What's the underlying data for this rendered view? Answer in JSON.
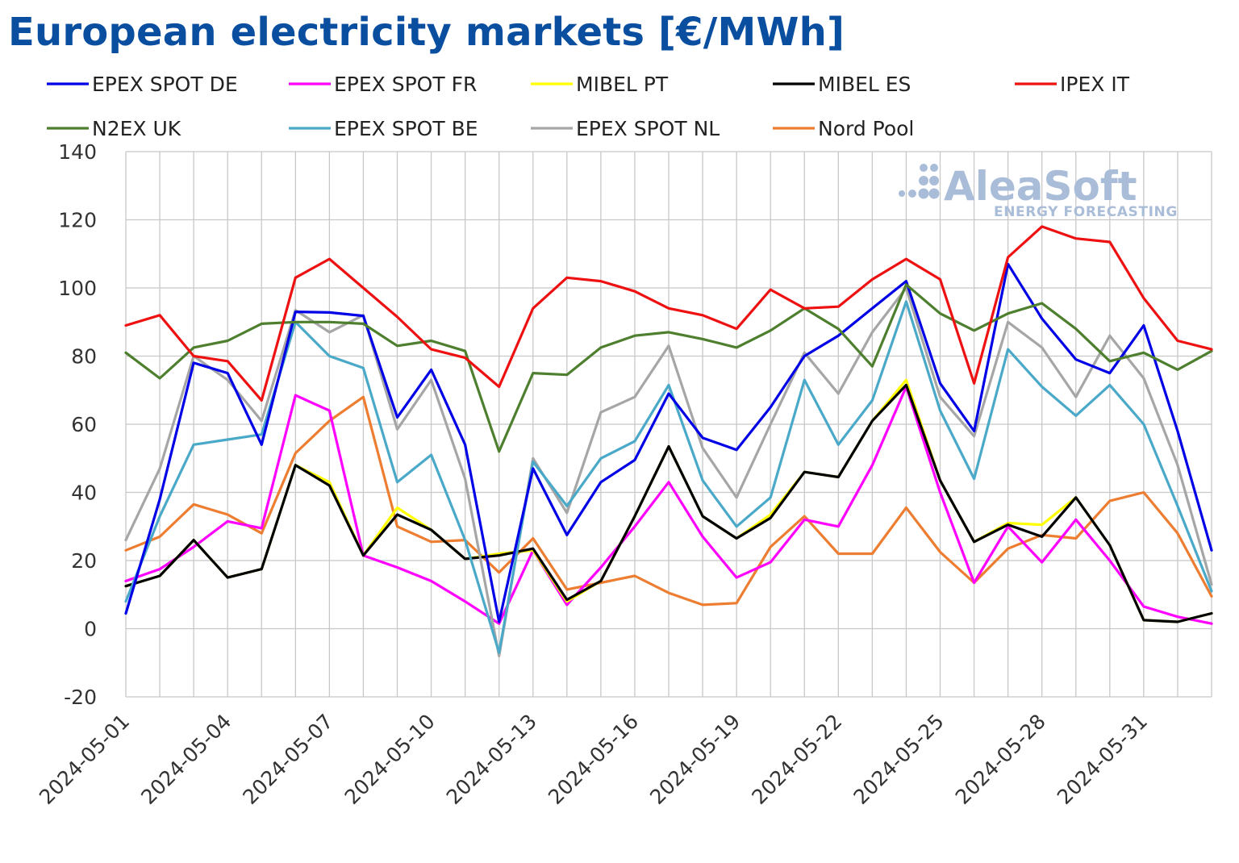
{
  "chart_data": {
    "type": "line",
    "title": "European electricity markets [€/MWh]",
    "xlabel": "",
    "ylabel": "",
    "ylim": [
      -20,
      140
    ],
    "yticks": [
      -20,
      0,
      20,
      40,
      60,
      80,
      100,
      120,
      140
    ],
    "grid": true,
    "legend_position": "top",
    "x": [
      "2024-05-01",
      "2024-05-02",
      "2024-05-03",
      "2024-05-04",
      "2024-05-05",
      "2024-05-06",
      "2024-05-07",
      "2024-05-08",
      "2024-05-09",
      "2024-05-10",
      "2024-05-11",
      "2024-05-12",
      "2024-05-13",
      "2024-05-14",
      "2024-05-15",
      "2024-05-16",
      "2024-05-17",
      "2024-05-18",
      "2024-05-19",
      "2024-05-20",
      "2024-05-21",
      "2024-05-22",
      "2024-05-23",
      "2024-05-24",
      "2024-05-25",
      "2024-05-26",
      "2024-05-27",
      "2024-05-28",
      "2024-05-29",
      "2024-05-30",
      "2024-05-31",
      "2024-06-01",
      "2024-06-02"
    ],
    "x_tick_labels": [
      "2024-05-01",
      "2024-05-04",
      "2024-05-07",
      "2024-05-10",
      "2024-05-13",
      "2024-05-16",
      "2024-05-19",
      "2024-05-22",
      "2024-05-25",
      "2024-05-28",
      "2024-05-31"
    ],
    "series": [
      {
        "name": "EPEX SPOT DE",
        "color": "#0000e6",
        "values": [
          4.5,
          38,
          78,
          75,
          54,
          93,
          92.8,
          91.8,
          62,
          76,
          54,
          2,
          47,
          27.5,
          43,
          49.5,
          69,
          56,
          52.5,
          65,
          80,
          86,
          94,
          102,
          72,
          58,
          107,
          91,
          79,
          75,
          89,
          58,
          23
        ]
      },
      {
        "name": "EPEX SPOT FR",
        "color": "#ff00ff",
        "values": [
          14,
          17.5,
          24,
          31.5,
          29.5,
          68.5,
          64,
          21.5,
          18,
          14,
          8,
          1.5,
          23,
          7,
          18,
          30,
          43,
          27,
          15,
          19.5,
          32,
          30,
          48,
          71,
          40,
          13.5,
          30,
          19.5,
          32,
          20,
          6.5,
          3.5,
          1.5
        ]
      },
      {
        "name": "MIBEL PT",
        "color": "#ffff00",
        "values": [
          12.5,
          15.5,
          26,
          15,
          17.5,
          48,
          43,
          21.5,
          35.5,
          29,
          20.5,
          22,
          23,
          8,
          14,
          33,
          53.5,
          33,
          26.5,
          33.5,
          46,
          44.5,
          61,
          73,
          43.5,
          25.5,
          31,
          30.5,
          38.5,
          24.5,
          2.5,
          2,
          4.5
        ]
      },
      {
        "name": "MIBEL ES",
        "color": "#000000",
        "values": [
          12.5,
          15.5,
          26,
          15,
          17.5,
          48,
          42,
          21.5,
          33.5,
          29,
          20.5,
          21.5,
          23.5,
          8.5,
          14,
          33,
          53.5,
          33,
          26.5,
          32.5,
          46,
          44.5,
          61,
          71.5,
          43.5,
          25.5,
          30.5,
          27,
          38.5,
          24.5,
          2.5,
          2,
          4.5
        ]
      },
      {
        "name": "IPEX IT",
        "color": "#ee1111",
        "values": [
          89,
          92,
          80,
          78.5,
          67,
          103,
          108.5,
          100,
          91.5,
          82,
          79.5,
          71,
          94,
          103,
          102,
          99,
          94,
          92,
          88,
          99.5,
          94,
          94.5,
          102.5,
          108.5,
          102.5,
          72,
          109,
          118,
          114.5,
          113.5,
          97,
          84.5,
          82
        ]
      },
      {
        "name": "N2EX UK",
        "color": "#4e7f2e",
        "values": [
          81,
          73.5,
          82.5,
          84.5,
          89.5,
          90,
          90,
          89.5,
          83,
          84.5,
          81.5,
          52,
          75,
          74.5,
          82.5,
          86,
          87,
          85,
          82.5,
          87.5,
          94,
          88,
          77,
          101,
          92.5,
          87.5,
          92.5,
          95.5,
          88,
          78.5,
          81,
          76,
          81.5
        ]
      },
      {
        "name": "EPEX SPOT BE",
        "color": "#4aa9c8",
        "values": [
          8,
          33,
          54,
          55.5,
          57,
          90,
          80,
          76.5,
          43,
          51,
          26,
          -7,
          49,
          36,
          50,
          55,
          71.5,
          43.5,
          30,
          38.5,
          73,
          54,
          67,
          96,
          64,
          44,
          82,
          71,
          62.5,
          71.5,
          60,
          36,
          11
        ]
      },
      {
        "name": "EPEX SPOT NL",
        "color": "#a6a6a6",
        "values": [
          26,
          47,
          80,
          73,
          61,
          93.5,
          87,
          92,
          58.5,
          73,
          44,
          -8,
          50,
          34,
          63.5,
          68,
          83,
          53,
          38.5,
          60,
          81,
          69,
          87,
          100,
          68,
          56.5,
          90,
          82.5,
          68,
          86,
          73.5,
          48,
          13
        ]
      },
      {
        "name": "Nord Pool",
        "color": "#ed7d31",
        "values": [
          23,
          27,
          36.5,
          33.5,
          28,
          51.5,
          61,
          68,
          30,
          25.5,
          26,
          16.5,
          26.5,
          11.5,
          13.5,
          15.5,
          10.5,
          7,
          7.5,
          24,
          33,
          22,
          22,
          35.5,
          22.5,
          13.5,
          23.5,
          27.5,
          26.5,
          37.5,
          40,
          28,
          9.5
        ]
      }
    ]
  },
  "watermark": {
    "brand": "AleaSoft",
    "tagline": "ENERGY FORECASTING",
    "color": "#a9bcd8"
  }
}
